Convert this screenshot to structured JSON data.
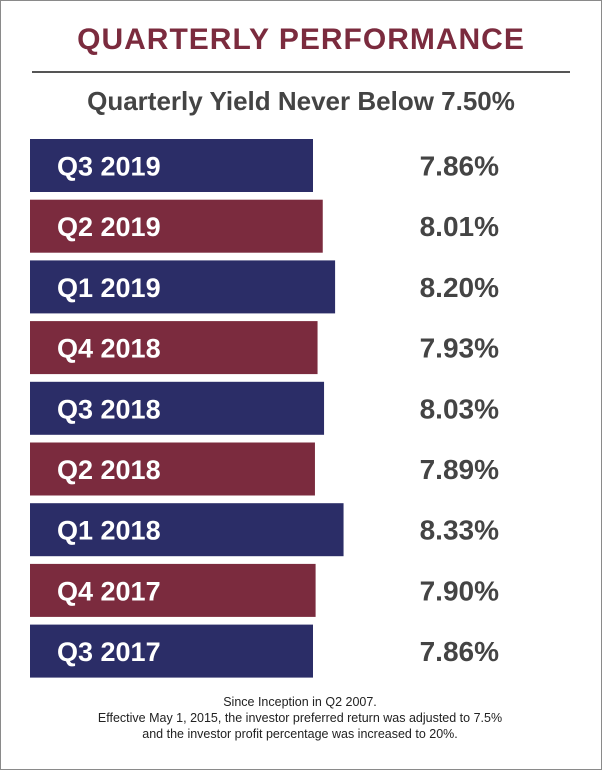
{
  "header": {
    "title": "QUARTERLY PERFORMANCE",
    "subtitle": "Quarterly Yield Never Below 7.50%"
  },
  "chart_data": {
    "type": "bar",
    "orientation": "horizontal",
    "categories": [
      "Q3 2019",
      "Q2 2019",
      "Q1 2019",
      "Q4 2018",
      "Q3 2018",
      "Q2 2018",
      "Q1 2018",
      "Q4 2017",
      "Q3 2017"
    ],
    "values": [
      7.86,
      8.01,
      8.2,
      7.93,
      8.03,
      7.89,
      8.33,
      7.9,
      7.86
    ],
    "value_labels": [
      "7.86%",
      "8.01%",
      "8.20%",
      "7.93%",
      "8.03%",
      "7.89%",
      "8.33%",
      "7.90%",
      "7.86%"
    ],
    "bar_colors": [
      "#2b2d67",
      "#7b2b3e"
    ],
    "grid": false,
    "legend": "none"
  },
  "footnote": {
    "line1": "Since Inception in Q2 2007.",
    "line2": "Effective May 1, 2015, the investor preferred return was adjusted to 7.5%",
    "line3": "and the investor profit percentage was increased to 20%."
  }
}
